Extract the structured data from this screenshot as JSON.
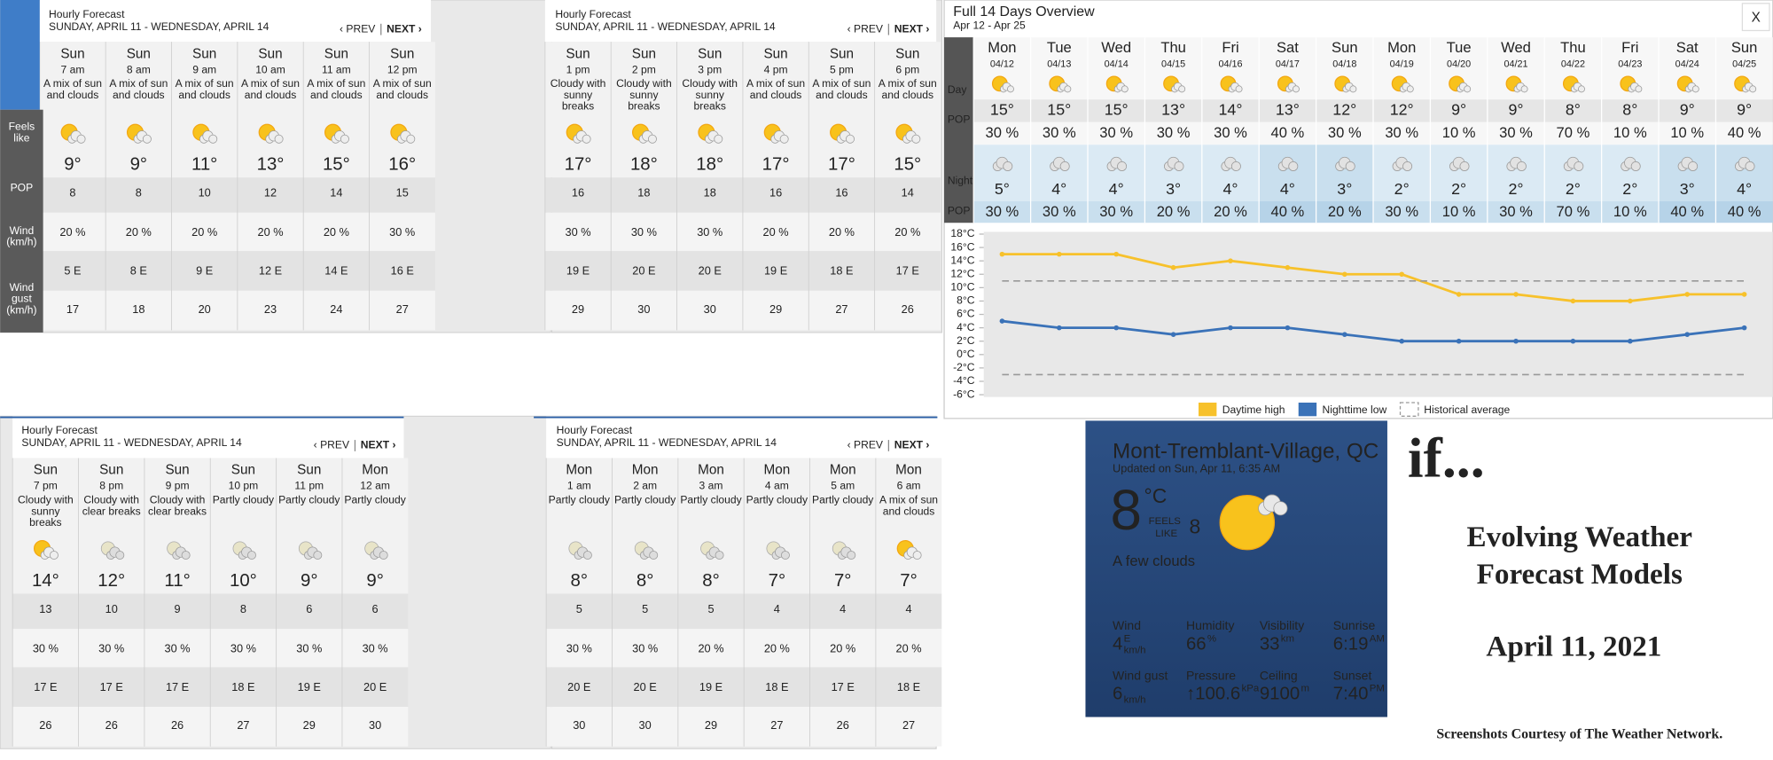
{
  "hourly_panels": [
    {
      "title": "Hourly Forecast",
      "date_range": "SUNDAY, APRIL 11 - WEDNESDAY, APRIL 14",
      "prev": "‹ PREV",
      "next": "NEXT ›",
      "row_labels": [
        "Feels like",
        "POP",
        "Wind (km/h)",
        "Wind gust (km/h)"
      ],
      "hours": [
        {
          "day": "Sun",
          "time": "7 am",
          "condition": "A mix of sun and clouds",
          "temp": "9°",
          "feels_like": "8",
          "pop": "20 %",
          "wind": "5 E",
          "gust": "17"
        },
        {
          "day": "Sun",
          "time": "8 am",
          "condition": "A mix of sun and clouds",
          "temp": "9°",
          "feels_like": "8",
          "pop": "20 %",
          "wind": "8 E",
          "gust": "18"
        },
        {
          "day": "Sun",
          "time": "9 am",
          "condition": "A mix of sun and clouds",
          "temp": "11°",
          "feels_like": "10",
          "pop": "20 %",
          "wind": "9 E",
          "gust": "20"
        },
        {
          "day": "Sun",
          "time": "10 am",
          "condition": "A mix of sun and clouds",
          "temp": "13°",
          "feels_like": "12",
          "pop": "20 %",
          "wind": "12 E",
          "gust": "23"
        },
        {
          "day": "Sun",
          "time": "11 am",
          "condition": "A mix of sun and clouds",
          "temp": "15°",
          "feels_like": "14",
          "pop": "20 %",
          "wind": "14 E",
          "gust": "24"
        },
        {
          "day": "Sun",
          "time": "12 pm",
          "condition": "A mix of sun and clouds",
          "temp": "16°",
          "feels_like": "15",
          "pop": "30 %",
          "wind": "16 E",
          "gust": "27"
        }
      ]
    },
    {
      "title": "Hourly Forecast",
      "date_range": "SUNDAY, APRIL 11 - WEDNESDAY, APRIL 14",
      "prev": "‹ PREV",
      "next": "NEXT ›",
      "hours": [
        {
          "day": "Sun",
          "time": "1 pm",
          "condition": "Cloudy with sunny breaks",
          "temp": "17°",
          "feels_like": "16",
          "pop": "30 %",
          "wind": "19 E",
          "gust": "29"
        },
        {
          "day": "Sun",
          "time": "2 pm",
          "condition": "Cloudy with sunny breaks",
          "temp": "18°",
          "feels_like": "18",
          "pop": "30 %",
          "wind": "20 E",
          "gust": "30"
        },
        {
          "day": "Sun",
          "time": "3 pm",
          "condition": "Cloudy with sunny breaks",
          "temp": "18°",
          "feels_like": "18",
          "pop": "30 %",
          "wind": "20 E",
          "gust": "30"
        },
        {
          "day": "Sun",
          "time": "4 pm",
          "condition": "A mix of sun and clouds",
          "temp": "17°",
          "feels_like": "16",
          "pop": "20 %",
          "wind": "19 E",
          "gust": "29"
        },
        {
          "day": "Sun",
          "time": "5 pm",
          "condition": "A mix of sun and clouds",
          "temp": "17°",
          "feels_like": "16",
          "pop": "20 %",
          "wind": "18 E",
          "gust": "27"
        },
        {
          "day": "Sun",
          "time": "6 pm",
          "condition": "A mix of sun and clouds",
          "temp": "15°",
          "feels_like": "14",
          "pop": "20 %",
          "wind": "17 E",
          "gust": "26"
        }
      ]
    },
    {
      "title": "Hourly Forecast",
      "date_range": "SUNDAY, APRIL 11 - WEDNESDAY, APRIL 14",
      "prev": "‹ PREV",
      "next": "NEXT ›",
      "hours": [
        {
          "day": "Sun",
          "time": "7 pm",
          "condition": "Cloudy with sunny breaks",
          "temp": "14°",
          "feels_like": "13",
          "pop": "30 %",
          "wind": "17 E",
          "gust": "26"
        },
        {
          "day": "Sun",
          "time": "8 pm",
          "condition": "Cloudy with clear breaks",
          "temp": "12°",
          "feels_like": "10",
          "pop": "30 %",
          "wind": "17 E",
          "gust": "26"
        },
        {
          "day": "Sun",
          "time": "9 pm",
          "condition": "Cloudy with clear breaks",
          "temp": "11°",
          "feels_like": "9",
          "pop": "30 %",
          "wind": "17 E",
          "gust": "26"
        },
        {
          "day": "Sun",
          "time": "10 pm",
          "condition": "Partly cloudy",
          "temp": "10°",
          "feels_like": "8",
          "pop": "30 %",
          "wind": "18 E",
          "gust": "27"
        },
        {
          "day": "Sun",
          "time": "11 pm",
          "condition": "Partly cloudy",
          "temp": "9°",
          "feels_like": "6",
          "pop": "30 %",
          "wind": "19 E",
          "gust": "29"
        },
        {
          "day": "Mon",
          "time": "12 am",
          "condition": "Partly cloudy",
          "temp": "9°",
          "feels_like": "6",
          "pop": "30 %",
          "wind": "20 E",
          "gust": "30"
        }
      ]
    },
    {
      "title": "Hourly Forecast",
      "date_range": "SUNDAY, APRIL 11 - WEDNESDAY, APRIL 14",
      "prev": "‹ PREV",
      "next": "NEXT ›",
      "hours": [
        {
          "day": "Mon",
          "time": "1 am",
          "condition": "Partly cloudy",
          "temp": "8°",
          "feels_like": "5",
          "pop": "30 %",
          "wind": "20 E",
          "gust": "30"
        },
        {
          "day": "Mon",
          "time": "2 am",
          "condition": "Partly cloudy",
          "temp": "8°",
          "feels_like": "5",
          "pop": "30 %",
          "wind": "20 E",
          "gust": "30"
        },
        {
          "day": "Mon",
          "time": "3 am",
          "condition": "Partly cloudy",
          "temp": "8°",
          "feels_like": "5",
          "pop": "20 %",
          "wind": "19 E",
          "gust": "29"
        },
        {
          "day": "Mon",
          "time": "4 am",
          "condition": "Partly cloudy",
          "temp": "7°",
          "feels_like": "4",
          "pop": "20 %",
          "wind": "18 E",
          "gust": "27"
        },
        {
          "day": "Mon",
          "time": "5 am",
          "condition": "Partly cloudy",
          "temp": "7°",
          "feels_like": "4",
          "pop": "20 %",
          "wind": "17 E",
          "gust": "26"
        },
        {
          "day": "Mon",
          "time": "6 am",
          "condition": "A mix of sun and clouds",
          "temp": "7°",
          "feels_like": "4",
          "pop": "20 %",
          "wind": "18 E",
          "gust": "27"
        }
      ]
    }
  ],
  "overview": {
    "title": "Full 14 Days Overview",
    "subtitle": "Apr 12 - Apr 25",
    "close": "X",
    "row_labels": [
      "Day",
      "POP",
      "Night",
      "POP"
    ],
    "days": [
      {
        "day": "Mon",
        "date": "04/12",
        "high": "15°",
        "day_pop": "30 %",
        "low": "5°",
        "night_pop": "30 %"
      },
      {
        "day": "Tue",
        "date": "04/13",
        "high": "15°",
        "day_pop": "30 %",
        "low": "4°",
        "night_pop": "30 %"
      },
      {
        "day": "Wed",
        "date": "04/14",
        "high": "15°",
        "day_pop": "30 %",
        "low": "4°",
        "night_pop": "30 %"
      },
      {
        "day": "Thu",
        "date": "04/15",
        "high": "13°",
        "day_pop": "30 %",
        "low": "3°",
        "night_pop": "20 %"
      },
      {
        "day": "Fri",
        "date": "04/16",
        "high": "14°",
        "day_pop": "30 %",
        "low": "4°",
        "night_pop": "20 %"
      },
      {
        "day": "Sat",
        "date": "04/17",
        "high": "13°",
        "day_pop": "40 %",
        "low": "4°",
        "night_pop": "40 %"
      },
      {
        "day": "Sun",
        "date": "04/18",
        "high": "12°",
        "day_pop": "30 %",
        "low": "3°",
        "night_pop": "20 %"
      },
      {
        "day": "Mon",
        "date": "04/19",
        "high": "12°",
        "day_pop": "30 %",
        "low": "2°",
        "night_pop": "30 %"
      },
      {
        "day": "Tue",
        "date": "04/20",
        "high": "9°",
        "day_pop": "10 %",
        "low": "2°",
        "night_pop": "10 %"
      },
      {
        "day": "Wed",
        "date": "04/21",
        "high": "9°",
        "day_pop": "30 %",
        "low": "2°",
        "night_pop": "30 %"
      },
      {
        "day": "Thu",
        "date": "04/22",
        "high": "8°",
        "day_pop": "70 %",
        "low": "2°",
        "night_pop": "70 %"
      },
      {
        "day": "Fri",
        "date": "04/23",
        "high": "8°",
        "day_pop": "10 %",
        "low": "2°",
        "night_pop": "10 %"
      },
      {
        "day": "Sat",
        "date": "04/24",
        "high": "9°",
        "day_pop": "10 %",
        "low": "3°",
        "night_pop": "40 %"
      },
      {
        "day": "Sun",
        "date": "04/25",
        "high": "9°",
        "day_pop": "40 %",
        "low": "4°",
        "night_pop": "40 %"
      }
    ]
  },
  "chart_data": {
    "type": "line",
    "ylim": [
      -6,
      18
    ],
    "yticks": [
      {
        "value": 18,
        "label": "18°C"
      },
      {
        "value": 16,
        "label": "16°C"
      },
      {
        "value": 14,
        "label": "14°C"
      },
      {
        "value": 12,
        "label": "12°C"
      },
      {
        "value": 10,
        "label": "10°C"
      },
      {
        "value": 8,
        "label": "8°C"
      },
      {
        "value": 6,
        "label": "6°C"
      },
      {
        "value": 4,
        "label": "4°C"
      },
      {
        "value": 2,
        "label": "2°C"
      },
      {
        "value": 0,
        "label": "0°C"
      },
      {
        "value": -2,
        "label": "-2°C"
      },
      {
        "value": -4,
        "label": "-4°C"
      },
      {
        "value": -6,
        "label": "-6°C"
      }
    ],
    "series": [
      {
        "name": "Daytime high",
        "color": "#f7c12b",
        "values": [
          15,
          15,
          15,
          13,
          14,
          13,
          12,
          12,
          9,
          9,
          8,
          8,
          9,
          9
        ]
      },
      {
        "name": "Nighttime low",
        "color": "#3a72b8",
        "values": [
          5,
          4,
          4,
          3,
          4,
          4,
          3,
          2,
          2,
          2,
          2,
          2,
          3,
          4
        ]
      },
      {
        "name": "Historical average",
        "color": "#999999",
        "values": [
          11,
          11,
          11,
          11,
          11,
          11,
          11,
          11,
          11,
          11,
          11,
          11,
          11,
          11
        ],
        "low_values": [
          -3,
          -3,
          -3,
          -3,
          -3,
          -3,
          -3,
          -3,
          -3,
          -3,
          -3,
          -3,
          -3,
          -3
        ]
      }
    ]
  },
  "current": {
    "location": "Mont-Tremblant-Village, QC",
    "updated": "Updated on Sun, Apr 11, 6:35 AM",
    "temp": "8",
    "unit": "°C",
    "feels_label": [
      "FEELS",
      "LIKE"
    ],
    "feels": "8",
    "condition": "A few clouds",
    "stats": [
      {
        "label": "Wind",
        "value": "4",
        "sup": "E",
        "sub": "km/h"
      },
      {
        "label": "Humidity",
        "value": "66",
        "sup": "%"
      },
      {
        "label": "Visibility",
        "value": "33",
        "sup": "km"
      },
      {
        "label": "Sunrise",
        "value": "6:19",
        "sup": "AM"
      },
      {
        "label": "Wind gust",
        "value": "6",
        "sub": "km/h"
      },
      {
        "label": "Pressure",
        "value": "↑100.6",
        "sup": "kPa"
      },
      {
        "label": "Ceiling",
        "value": "9100",
        "sup": "m"
      },
      {
        "label": "Sunset",
        "value": "7:40",
        "sup": "PM"
      }
    ]
  },
  "caption": {
    "lead": "if...",
    "title": [
      "Evolving Weather",
      "Forecast Models"
    ],
    "date": "April 11, 2021",
    "credit": "Screenshots Courtesy of The Weather Network."
  }
}
